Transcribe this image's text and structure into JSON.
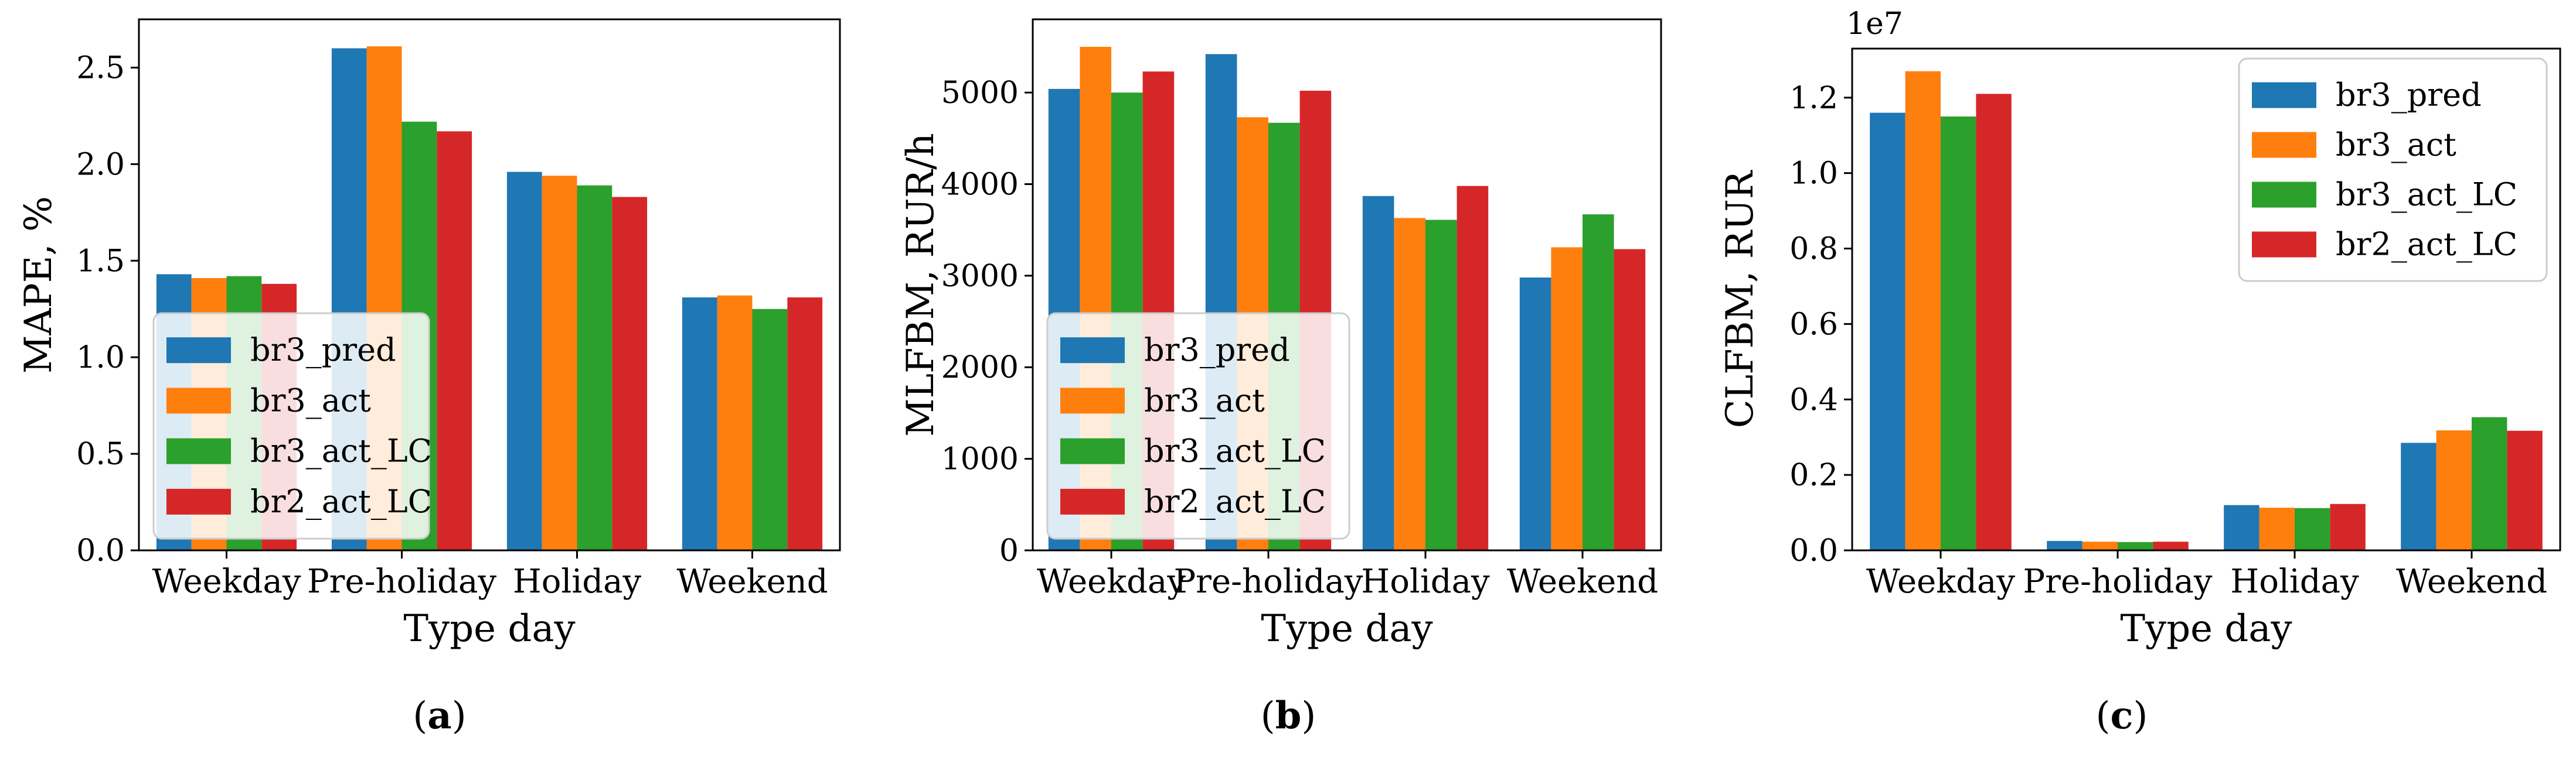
{
  "colors": {
    "br3_pred": "#1f77b4",
    "br3_act": "#ff7f0e",
    "br3_act_LC": "#2ca02c",
    "br2_act_LC": "#d62728"
  },
  "chart_data": [
    {
      "type": "bar",
      "panel": "a",
      "categories": [
        "Weekday",
        "Pre-holiday",
        "Holiday",
        "Weekend"
      ],
      "xlabel": "Type day",
      "ylabel": "MAPE, %",
      "ylim": [
        0,
        2.75
      ],
      "yticks": [
        "0.0",
        "0.5",
        "1.0",
        "1.5",
        "2.0",
        "2.5"
      ],
      "ytick_values": [
        0,
        0.5,
        1.0,
        1.5,
        2.0,
        2.5
      ],
      "scale_label": "",
      "legend_position": "lower-left",
      "series": [
        {
          "name": "br3_pred",
          "values": [
            1.43,
            2.6,
            1.96,
            1.31
          ]
        },
        {
          "name": "br3_act",
          "values": [
            1.41,
            2.61,
            1.94,
            1.32
          ]
        },
        {
          "name": "br3_act_LC",
          "values": [
            1.42,
            2.22,
            1.89,
            1.25
          ]
        },
        {
          "name": "br2_act_LC",
          "values": [
            1.38,
            2.17,
            1.83,
            1.31
          ]
        }
      ]
    },
    {
      "type": "bar",
      "panel": "b",
      "categories": [
        "Weekday",
        "Pre-holiday",
        "Holiday",
        "Weekend"
      ],
      "xlabel": "Type day",
      "ylabel": "MLFBM, RUR/h",
      "ylim": [
        0,
        5800
      ],
      "yticks": [
        "0",
        "1000",
        "2000",
        "3000",
        "4000",
        "5000"
      ],
      "ytick_values": [
        0,
        1000,
        2000,
        3000,
        4000,
        5000
      ],
      "scale_label": "",
      "legend_position": "lower-left",
      "series": [
        {
          "name": "br3_pred",
          "values": [
            5040,
            5420,
            3870,
            2980
          ]
        },
        {
          "name": "br3_act",
          "values": [
            5500,
            4730,
            3630,
            3310
          ]
        },
        {
          "name": "br3_act_LC",
          "values": [
            5000,
            4670,
            3610,
            3670
          ]
        },
        {
          "name": "br2_act_LC",
          "values": [
            5230,
            5020,
            3980,
            3290
          ]
        }
      ]
    },
    {
      "type": "bar",
      "panel": "c",
      "categories": [
        "Weekday",
        "Pre-holiday",
        "Holiday",
        "Weekend"
      ],
      "xlabel": "Type day",
      "ylabel": "CLFBM, RUR",
      "ylim": [
        0,
        13300000
      ],
      "yticks": [
        "0.0",
        "0.2",
        "0.4",
        "0.6",
        "0.8",
        "1.0",
        "1.2"
      ],
      "ytick_values": [
        0,
        2000000,
        4000000,
        6000000,
        8000000,
        10000000,
        12000000
      ],
      "scale_label": "1e7",
      "legend_position": "upper-right",
      "series": [
        {
          "name": "br3_pred",
          "values": [
            11600000,
            250000,
            1200000,
            2850000
          ]
        },
        {
          "name": "br3_act",
          "values": [
            12700000,
            230000,
            1130000,
            3180000
          ]
        },
        {
          "name": "br3_act_LC",
          "values": [
            11500000,
            220000,
            1120000,
            3530000
          ]
        },
        {
          "name": "br2_act_LC",
          "values": [
            12100000,
            230000,
            1230000,
            3170000
          ]
        }
      ]
    }
  ],
  "panel_labels": [
    "a",
    "b",
    "c"
  ]
}
